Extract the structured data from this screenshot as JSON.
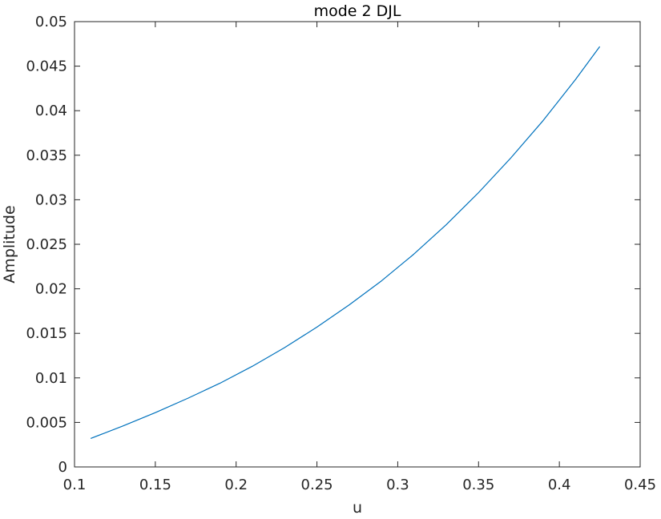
{
  "chart_data": {
    "type": "line",
    "title": "mode 2 DJL",
    "xlabel": "u",
    "ylabel": "Amplitude",
    "xlim": [
      0.1,
      0.45
    ],
    "ylim": [
      0,
      0.05
    ],
    "xticks": [
      "0.1",
      "0.15",
      "0.2",
      "0.25",
      "0.3",
      "0.35",
      "0.4",
      "0.45"
    ],
    "yticks": [
      "0",
      "0.005",
      "0.01",
      "0.015",
      "0.02",
      "0.025",
      "0.03",
      "0.035",
      "0.04",
      "0.045",
      "0.05"
    ],
    "grid": false,
    "series": [
      {
        "color": "#0072BD",
        "x": [
          0.11,
          0.13,
          0.15,
          0.17,
          0.19,
          0.21,
          0.23,
          0.25,
          0.27,
          0.29,
          0.31,
          0.33,
          0.35,
          0.37,
          0.39,
          0.41,
          0.425
        ],
        "y": [
          0.0032,
          0.0046,
          0.0061,
          0.0077,
          0.0094,
          0.0113,
          0.0134,
          0.0157,
          0.0182,
          0.0209,
          0.0239,
          0.0272,
          0.0308,
          0.0347,
          0.0389,
          0.0435,
          0.0472
        ]
      }
    ]
  }
}
